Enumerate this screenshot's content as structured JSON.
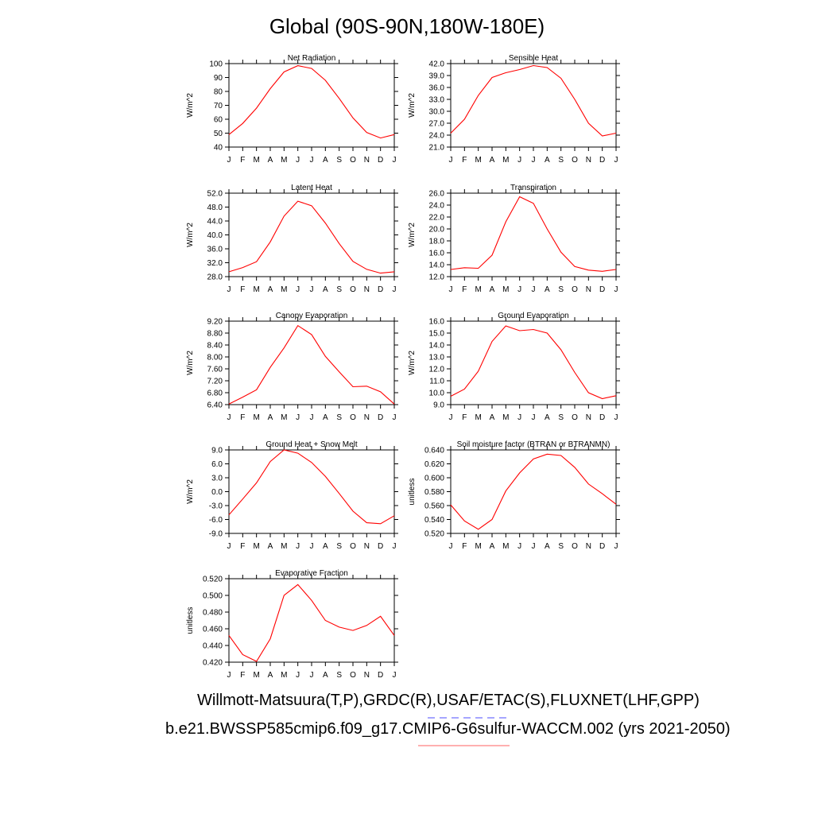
{
  "title": "Global (90S-90N,180W-180E)",
  "captions": {
    "line1": "Willmott-Matsuura(T,P),GRDC(R),USAF/ETAC(S),FLUXNET(LHF,GPP)",
    "line2": "b.e21.BWSSP585cmip6.f09_g17.CMIP6-G6sulfur-WACCM.002 (yrs 2021-2050)"
  },
  "colors": {
    "line": "#ff0000",
    "axis": "#000000",
    "dashed_underline": "#7070ff",
    "solid_underline": "#ff8080"
  },
  "chart_data": [
    {
      "type": "line",
      "title": "Net Radiation",
      "ylabel": "W/m^2",
      "categories": [
        "J",
        "F",
        "M",
        "A",
        "M",
        "J",
        "J",
        "A",
        "S",
        "O",
        "N",
        "D",
        "J"
      ],
      "ylim": [
        40,
        100
      ],
      "yticks": [
        "40",
        "50",
        "60",
        "70",
        "80",
        "90",
        "100"
      ],
      "values": [
        49,
        57,
        68,
        82,
        94,
        98.5,
        96.5,
        88,
        75,
        61,
        50.5,
        46.5,
        49
      ]
    },
    {
      "type": "line",
      "title": "Sensible Heat",
      "ylabel": "W/m^2",
      "categories": [
        "J",
        "F",
        "M",
        "A",
        "M",
        "J",
        "J",
        "A",
        "S",
        "O",
        "N",
        "D",
        "J"
      ],
      "ylim": [
        21,
        42
      ],
      "yticks": [
        "21.0",
        "24.0",
        "27.0",
        "30.0",
        "33.0",
        "36.0",
        "39.0",
        "42.0"
      ],
      "values": [
        24.5,
        28,
        34,
        38.5,
        39.7,
        40.5,
        41.5,
        41,
        38.3,
        33,
        27,
        23.8,
        24.5
      ]
    },
    {
      "type": "line",
      "title": "Latent Heat",
      "ylabel": "W/m^2",
      "categories": [
        "J",
        "F",
        "M",
        "A",
        "M",
        "J",
        "J",
        "A",
        "S",
        "O",
        "N",
        "D",
        "J"
      ],
      "ylim": [
        28,
        52
      ],
      "yticks": [
        "28.0",
        "32.0",
        "36.0",
        "40.0",
        "44.0",
        "48.0",
        "52.0"
      ],
      "values": [
        29.4,
        30.6,
        32.3,
        38,
        45.4,
        49.7,
        48.4,
        43.4,
        37.5,
        32.4,
        30.1,
        29,
        29.4
      ]
    },
    {
      "type": "line",
      "title": "Transpiration",
      "ylabel": "W/m^2",
      "categories": [
        "J",
        "F",
        "M",
        "A",
        "M",
        "J",
        "J",
        "A",
        "S",
        "O",
        "N",
        "D",
        "J"
      ],
      "ylim": [
        12,
        26
      ],
      "yticks": [
        "12.0",
        "14.0",
        "16.0",
        "18.0",
        "20.0",
        "22.0",
        "24.0",
        "26.0"
      ],
      "values": [
        13.2,
        13.5,
        13.4,
        15.6,
        21.2,
        25.4,
        24.3,
        20,
        16.1,
        13.7,
        13.1,
        12.9,
        13.2
      ]
    },
    {
      "type": "line",
      "title": "Canopy Evaporation",
      "ylabel": "W/m^2",
      "categories": [
        "J",
        "F",
        "M",
        "A",
        "M",
        "J",
        "J",
        "A",
        "S",
        "O",
        "N",
        "D",
        "J"
      ],
      "ylim": [
        6.4,
        9.2
      ],
      "yticks": [
        "6.40",
        "6.80",
        "7.20",
        "7.60",
        "8.00",
        "8.40",
        "8.80",
        "9.20"
      ],
      "values": [
        6.42,
        6.65,
        6.9,
        7.65,
        8.3,
        9.05,
        8.75,
        8.02,
        7.5,
        7,
        7.02,
        6.83,
        6.42
      ]
    },
    {
      "type": "line",
      "title": "Ground Evaporation",
      "ylabel": "W/m^2",
      "categories": [
        "J",
        "F",
        "M",
        "A",
        "M",
        "J",
        "J",
        "A",
        "S",
        "O",
        "N",
        "D",
        "J"
      ],
      "ylim": [
        9,
        16
      ],
      "yticks": [
        "9.0",
        "10.0",
        "11.0",
        "12.0",
        "13.0",
        "14.0",
        "15.0",
        "16.0"
      ],
      "values": [
        9.7,
        10.3,
        11.8,
        14.3,
        15.6,
        15.2,
        15.3,
        15,
        13.6,
        11.7,
        10,
        9.5,
        9.75
      ]
    },
    {
      "type": "line",
      "title": "Ground Heat + Snow Melt",
      "ylabel": "W/m^2",
      "categories": [
        "J",
        "F",
        "M",
        "A",
        "M",
        "J",
        "J",
        "A",
        "S",
        "O",
        "N",
        "D",
        "J"
      ],
      "ylim": [
        -9,
        9
      ],
      "yticks": [
        "-9.0",
        "-6.0",
        "-3.0",
        "0.0",
        "3.0",
        "6.0",
        "9.0"
      ],
      "values": [
        -5,
        -1.6,
        1.9,
        6.5,
        9,
        8.3,
        6.3,
        3.3,
        -0.4,
        -4.2,
        -6.7,
        -6.9,
        -5.2
      ]
    },
    {
      "type": "line",
      "title": "Soil moisture factor (BTRAN or BTRANMN)",
      "ylabel": "unitless",
      "categories": [
        "J",
        "F",
        "M",
        "A",
        "M",
        "J",
        "J",
        "A",
        "S",
        "O",
        "N",
        "D",
        "J"
      ],
      "ylim": [
        0.52,
        0.64
      ],
      "yticks": [
        "0.520",
        "0.540",
        "0.560",
        "0.580",
        "0.600",
        "0.620",
        "0.640"
      ],
      "values": [
        0.561,
        0.538,
        0.526,
        0.54,
        0.581,
        0.607,
        0.627,
        0.634,
        0.632,
        0.615,
        0.591,
        0.577,
        0.562
      ]
    },
    {
      "type": "line",
      "title": "Evaporative Fraction",
      "ylabel": "unitless",
      "categories": [
        "J",
        "F",
        "M",
        "A",
        "M",
        "J",
        "J",
        "A",
        "S",
        "O",
        "N",
        "D",
        "J"
      ],
      "ylim": [
        0.42,
        0.52
      ],
      "yticks": [
        "0.420",
        "0.440",
        "0.460",
        "0.480",
        "0.500",
        "0.520"
      ],
      "values": [
        0.452,
        0.429,
        0.421,
        0.448,
        0.5,
        0.513,
        0.494,
        0.47,
        0.462,
        0.458,
        0.464,
        0.475,
        0.452
      ]
    }
  ]
}
